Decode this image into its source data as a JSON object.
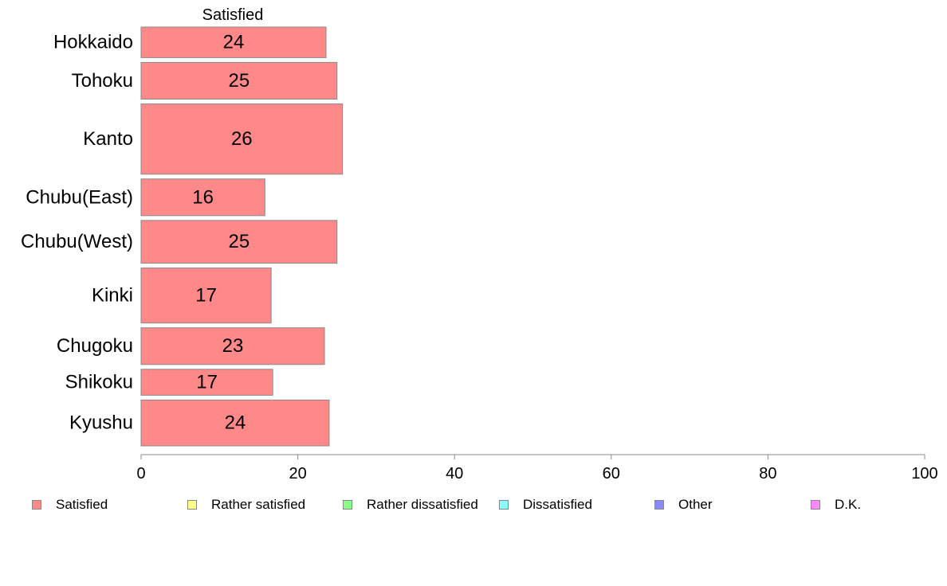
{
  "chart_data": {
    "type": "bar",
    "orientation": "horizontal",
    "column_header": "Satisfied",
    "categories": [
      "Hokkaido",
      "Tohoku",
      "Kanto",
      "Chubu(East)",
      "Chubu(West)",
      "Kinki",
      "Chugoku",
      "Shikoku",
      "Kyushu"
    ],
    "series": [
      {
        "name": "Satisfied",
        "values": [
          24,
          25,
          26,
          16,
          25,
          17,
          23,
          17,
          24
        ],
        "color": "#ff8888"
      }
    ],
    "bar_lengths": [
      23.6,
      25.0,
      25.7,
      15.8,
      25.0,
      16.6,
      23.4,
      16.8,
      24.0
    ],
    "relative_bar_thickness": [
      1,
      1.2,
      2.3,
      1.2,
      1.4,
      1.8,
      1.2,
      0.85,
      1.5
    ],
    "xlim": [
      0,
      100
    ],
    "xticks": [
      0,
      20,
      40,
      60,
      80,
      100
    ],
    "grid": false,
    "legend_position": "bottom"
  },
  "legend": [
    {
      "label": "Satisfied",
      "color": "#ff8888"
    },
    {
      "label": "Rather satisfied",
      "color": "#ffff88"
    },
    {
      "label": "Rather dissatisfied",
      "color": "#88ff88"
    },
    {
      "label": "Dissatisfied",
      "color": "#88ffff"
    },
    {
      "label": "Other",
      "color": "#8888ff"
    },
    {
      "label": "D.K.",
      "color": "#ff88ff"
    }
  ]
}
